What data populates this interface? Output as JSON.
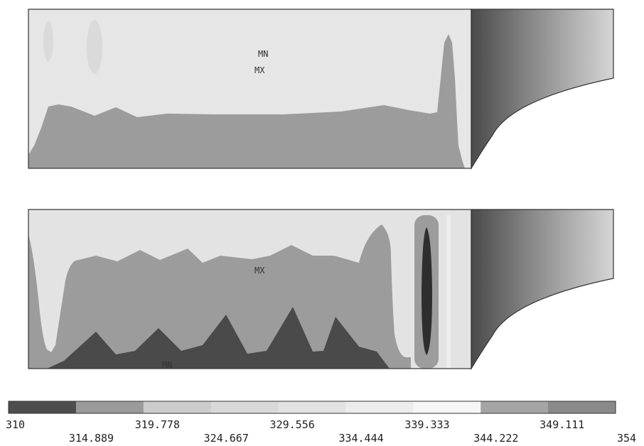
{
  "panels": [
    {
      "id": "top",
      "markers": [
        {
          "text": "MN"
        },
        {
          "text": "MX"
        }
      ]
    },
    {
      "id": "bottom",
      "markers": [
        {
          "text": "MX"
        },
        {
          "text": "MN"
        }
      ]
    }
  ],
  "legend": {
    "colors": [
      "#4d4d4d",
      "#9a9a9a",
      "#cccccc",
      "#d8d8d8",
      "#e2e2e2",
      "#ececec",
      "#f6f6f6",
      "#a4a4a4",
      "#8a8a8a"
    ],
    "ticks": [
      "310",
      "314.889",
      "319.778",
      "324.667",
      "329.556",
      "334.444",
      "339.333",
      "344.222",
      "349.111",
      "354"
    ]
  }
}
